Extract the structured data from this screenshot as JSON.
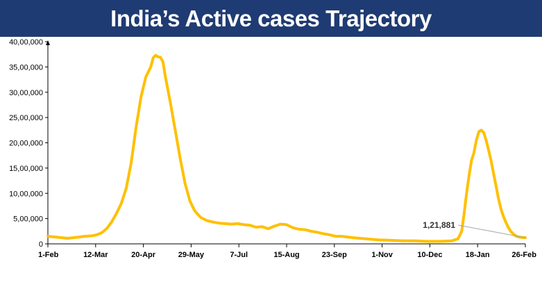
{
  "title": "India’s Active cases Trajectory",
  "colors": {
    "banner": "#1f3b73",
    "line": "#ffc000",
    "axis": "#000000"
  },
  "chart_data": {
    "type": "line",
    "title": "India’s Active cases Trajectory",
    "xlabel": "",
    "ylabel": "",
    "ylim": [
      0,
      4000000
    ],
    "grid": false,
    "legend": "none",
    "y_ticks": [
      0,
      500000,
      1000000,
      1500000,
      2000000,
      2500000,
      3000000,
      3500000,
      4000000
    ],
    "y_tick_labels": [
      "0",
      "5,00,000",
      "10,00,000",
      "15,00,000",
      "20,00,000",
      "25,00,000",
      "30,00,000",
      "35,00,000",
      "40,00,000"
    ],
    "x_tick_labels": [
      "1-Feb",
      "12-Mar",
      "20-Apr",
      "29-May",
      "7-Jul",
      "15-Aug",
      "23-Sep",
      "1-Nov",
      "10-Dec",
      "18-Jan",
      "26-Feb"
    ],
    "x_tick_days": [
      0,
      39,
      78,
      117,
      156,
      195,
      234,
      273,
      312,
      351,
      390
    ],
    "annotation": {
      "label": "1,21,881",
      "x_day": 390,
      "y": 121881
    },
    "series": [
      {
        "x_day": [
          0,
          8,
          16,
          24,
          30,
          36,
          40,
          44,
          48,
          52,
          56,
          60,
          64,
          68,
          72,
          76,
          80,
          84,
          86,
          88,
          90,
          92,
          94,
          96,
          100,
          104,
          108,
          112,
          116,
          120,
          125,
          130,
          135,
          140,
          145,
          150,
          155,
          160,
          165,
          170,
          175,
          180,
          185,
          190,
          195,
          200,
          205,
          210,
          215,
          220,
          225,
          230,
          235,
          240,
          250,
          260,
          270,
          280,
          290,
          300,
          310,
          320,
          330,
          335,
          338,
          340,
          342,
          344,
          346,
          348,
          350,
          352,
          354,
          356,
          358,
          360,
          362,
          364,
          366,
          368,
          370,
          372,
          374,
          376,
          378,
          380,
          382,
          384,
          386,
          388,
          390
        ],
        "values": [
          150000,
          130000,
          110000,
          130000,
          150000,
          160000,
          180000,
          220000,
          300000,
          430000,
          600000,
          800000,
          1100000,
          1600000,
          2300000,
          2900000,
          3300000,
          3500000,
          3680000,
          3730000,
          3700000,
          3690000,
          3600000,
          3300000,
          2800000,
          2250000,
          1700000,
          1200000,
          850000,
          650000,
          520000,
          460000,
          430000,
          410000,
          400000,
          390000,
          400000,
          380000,
          370000,
          330000,
          340000,
          300000,
          350000,
          390000,
          380000,
          320000,
          290000,
          280000,
          250000,
          230000,
          200000,
          180000,
          150000,
          150000,
          120000,
          100000,
          80000,
          70000,
          60000,
          60000,
          50000,
          50000,
          60000,
          100000,
          250000,
          600000,
          1000000,
          1350000,
          1650000,
          1800000,
          2050000,
          2220000,
          2250000,
          2200000,
          2050000,
          1850000,
          1650000,
          1400000,
          1150000,
          900000,
          700000,
          550000,
          430000,
          330000,
          250000,
          200000,
          160000,
          140000,
          130000,
          125000,
          121881
        ]
      }
    ]
  }
}
